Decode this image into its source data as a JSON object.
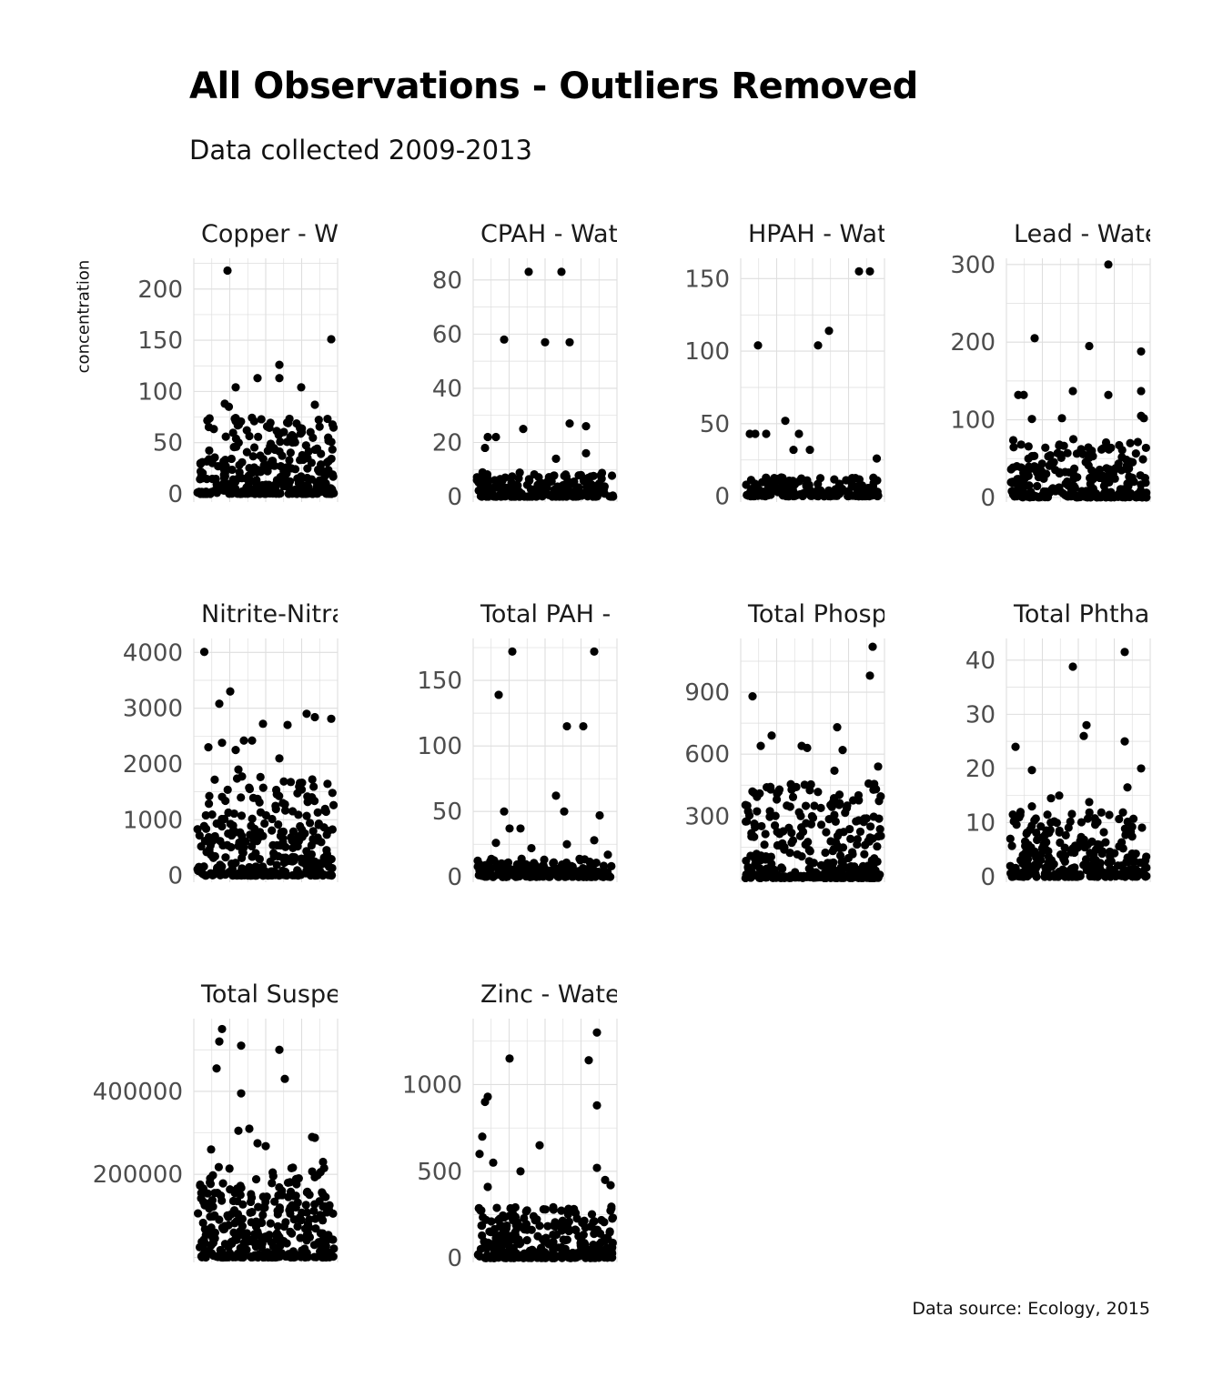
{
  "title": "All Observations - Outliers Removed",
  "subtitle": "Data collected 2009-2013",
  "ylabel": "concentration",
  "caption": "Data source: Ecology, 2015",
  "chart_data": [
    {
      "type": "scatter",
      "title": "Copper - Wa",
      "yticks": [
        0,
        50,
        100,
        150,
        200
      ],
      "ylim": [
        -8,
        230
      ],
      "outliers": [
        [
          0.22,
          218
        ],
        [
          0.98,
          151
        ],
        [
          0.6,
          126
        ],
        [
          0.44,
          113
        ],
        [
          0.6,
          113
        ],
        [
          0.76,
          104
        ],
        [
          0.28,
          104
        ],
        [
          0.86,
          87
        ],
        [
          0.2,
          88
        ],
        [
          0.23,
          85
        ]
      ],
      "bulk": {
        "count": 320,
        "max": 75,
        "seed": 11
      }
    },
    {
      "type": "scatter",
      "title": "CPAH - Wate",
      "yticks": [
        0,
        20,
        40,
        60,
        80
      ],
      "ylim": [
        -2,
        88
      ],
      "outliers": [
        [
          0.38,
          83
        ],
        [
          0.62,
          83
        ],
        [
          0.2,
          58
        ],
        [
          0.5,
          57
        ],
        [
          0.68,
          57
        ],
        [
          0.34,
          25
        ],
        [
          0.68,
          27
        ],
        [
          0.8,
          26
        ],
        [
          0.8,
          16
        ],
        [
          0.08,
          22
        ],
        [
          0.14,
          22
        ],
        [
          0.06,
          18
        ],
        [
          0.58,
          14
        ]
      ],
      "bulk": {
        "count": 200,
        "max": 9,
        "seed": 23
      }
    },
    {
      "type": "scatter",
      "title": "HPAH - Wate",
      "yticks": [
        0,
        50,
        100,
        150
      ],
      "ylim": [
        -4,
        164
      ],
      "outliers": [
        [
          0.84,
          155
        ],
        [
          0.92,
          155
        ],
        [
          0.62,
          114
        ],
        [
          0.54,
          104
        ],
        [
          0.1,
          104
        ],
        [
          0.3,
          52
        ],
        [
          0.04,
          43
        ],
        [
          0.08,
          43
        ],
        [
          0.16,
          43
        ],
        [
          0.4,
          43
        ],
        [
          0.48,
          32
        ],
        [
          0.36,
          32
        ],
        [
          0.97,
          26
        ]
      ],
      "bulk": {
        "count": 180,
        "max": 13,
        "seed": 37
      }
    },
    {
      "type": "scatter",
      "title": "Lead - Water",
      "yticks": [
        0,
        100,
        200,
        300
      ],
      "ylim": [
        -6,
        308
      ],
      "outliers": [
        [
          0.72,
          300
        ],
        [
          0.18,
          205
        ],
        [
          0.58,
          195
        ],
        [
          0.96,
          188
        ],
        [
          0.06,
          132
        ],
        [
          0.1,
          132
        ],
        [
          0.72,
          132
        ],
        [
          0.46,
          137
        ],
        [
          0.96,
          137
        ],
        [
          0.96,
          105
        ],
        [
          0.98,
          102
        ],
        [
          0.16,
          101
        ],
        [
          0.38,
          102
        ]
      ],
      "bulk": {
        "count": 280,
        "max": 75,
        "seed": 53
      }
    },
    {
      "type": "scatter",
      "title": "Nitrite-Nitrat",
      "yticks": [
        0,
        1000,
        2000,
        3000,
        4000
      ],
      "ylim": [
        -120,
        4250
      ],
      "outliers": [
        [
          0.05,
          4010
        ],
        [
          0.24,
          3300
        ],
        [
          0.16,
          3080
        ],
        [
          0.8,
          2900
        ],
        [
          0.66,
          2700
        ],
        [
          0.98,
          2810
        ],
        [
          0.48,
          2720
        ],
        [
          0.86,
          2840
        ],
        [
          0.34,
          2420
        ],
        [
          0.4,
          2420
        ],
        [
          0.18,
          2380
        ],
        [
          0.08,
          2300
        ],
        [
          0.6,
          2100
        ],
        [
          0.28,
          2250
        ],
        [
          0.3,
          1900
        ]
      ],
      "bulk": {
        "count": 320,
        "max": 1800,
        "seed": 71
      }
    },
    {
      "type": "scatter",
      "title": "Total PAH - ʼ",
      "yticks": [
        0,
        50,
        100,
        150
      ],
      "ylim": [
        -4,
        182
      ],
      "outliers": [
        [
          0.26,
          172
        ],
        [
          0.86,
          172
        ],
        [
          0.16,
          139
        ],
        [
          0.66,
          115
        ],
        [
          0.78,
          115
        ],
        [
          0.58,
          62
        ],
        [
          0.2,
          50
        ],
        [
          0.64,
          50
        ],
        [
          0.9,
          47
        ],
        [
          0.24,
          37
        ],
        [
          0.32,
          37
        ],
        [
          0.86,
          28
        ],
        [
          0.14,
          26
        ],
        [
          0.96,
          17
        ],
        [
          0.66,
          25
        ],
        [
          0.4,
          22
        ]
      ],
      "bulk": {
        "count": 200,
        "max": 14,
        "seed": 89
      }
    },
    {
      "type": "scatter",
      "title": "Total Phosp",
      "yticks": [
        300,
        600,
        900
      ],
      "ylim": [
        -20,
        1160
      ],
      "outliers": [
        [
          0.94,
          1120
        ],
        [
          0.92,
          980
        ],
        [
          0.06,
          880
        ],
        [
          0.2,
          690
        ],
        [
          0.12,
          640
        ],
        [
          0.68,
          730
        ],
        [
          0.42,
          640
        ],
        [
          0.46,
          630
        ],
        [
          0.72,
          620
        ],
        [
          0.98,
          540
        ],
        [
          0.66,
          520
        ]
      ],
      "bulk": {
        "count": 320,
        "max": 460,
        "seed": 97
      }
    },
    {
      "type": "scatter",
      "title": "Total Phthal",
      "yticks": [
        0,
        10,
        20,
        30,
        40
      ],
      "ylim": [
        -1,
        44
      ],
      "outliers": [
        [
          0.84,
          41.5
        ],
        [
          0.46,
          38.8
        ],
        [
          0.56,
          28
        ],
        [
          0.54,
          26
        ],
        [
          0.84,
          25
        ],
        [
          0.04,
          24
        ],
        [
          0.16,
          19.7
        ],
        [
          0.86,
          16.5
        ],
        [
          0.96,
          20
        ],
        [
          0.3,
          14.5
        ],
        [
          0.36,
          15
        ],
        [
          0.58,
          13.8
        ],
        [
          0.16,
          13
        ]
      ],
      "bulk": {
        "count": 280,
        "max": 12,
        "seed": 113
      }
    },
    {
      "type": "scatter",
      "title": "Total Suspe",
      "yticks": [
        200000,
        400000
      ],
      "ylim": [
        -12000,
        575000
      ],
      "outliers": [
        [
          0.18,
          550000
        ],
        [
          0.16,
          520000
        ],
        [
          0.32,
          510000
        ],
        [
          0.6,
          500000
        ],
        [
          0.14,
          455000
        ],
        [
          0.64,
          430000
        ],
        [
          0.32,
          395000
        ],
        [
          0.38,
          310000
        ],
        [
          0.3,
          305000
        ],
        [
          0.84,
          290000
        ],
        [
          0.86,
          288000
        ],
        [
          0.44,
          275000
        ],
        [
          0.1,
          260000
        ],
        [
          0.5,
          268000
        ],
        [
          0.92,
          230000
        ]
      ],
      "bulk": {
        "count": 340,
        "max": 220000,
        "seed": 131
      }
    },
    {
      "type": "scatter",
      "title": "Zinc - Water",
      "yticks": [
        0,
        500,
        1000
      ],
      "ylim": [
        -25,
        1380
      ],
      "outliers": [
        [
          0.88,
          1300
        ],
        [
          0.24,
          1150
        ],
        [
          0.82,
          1140
        ],
        [
          0.08,
          930
        ],
        [
          0.06,
          900
        ],
        [
          0.88,
          880
        ],
        [
          0.04,
          700
        ],
        [
          0.02,
          600
        ],
        [
          0.12,
          550
        ],
        [
          0.46,
          650
        ],
        [
          0.94,
          450
        ],
        [
          0.08,
          410
        ],
        [
          0.88,
          520
        ],
        [
          0.98,
          420
        ],
        [
          0.32,
          500
        ]
      ],
      "bulk": {
        "count": 300,
        "max": 300,
        "seed": 149
      }
    }
  ]
}
